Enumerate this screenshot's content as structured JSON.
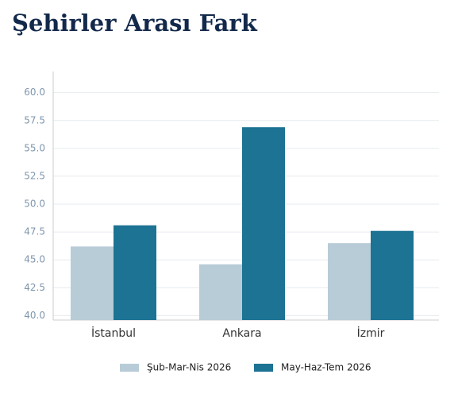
{
  "chart_data": {
    "type": "bar",
    "title": "Şehirler Arası Fark",
    "categories": [
      "İstanbul",
      "Ankara",
      "İzmir"
    ],
    "series": [
      {
        "name": "Şub-Mar-Nis 2026",
        "color": "#b8ccd7",
        "values": [
          46.2,
          44.6,
          46.5
        ]
      },
      {
        "name": "May-Haz-Tem 2026",
        "color": "#1c7393",
        "values": [
          48.1,
          56.9,
          47.6
        ]
      }
    ],
    "ylim": [
      39.6,
      61.9
    ],
    "yticks": [
      {
        "value": 40,
        "label": "40.0"
      },
      {
        "value": 42.5,
        "label": "42.5"
      },
      {
        "value": 45,
        "label": "45.0"
      },
      {
        "value": 47.5,
        "label": "47.5"
      },
      {
        "value": 50,
        "label": "50.0"
      },
      {
        "value": 52.5,
        "label": "52.5"
      },
      {
        "value": 55,
        "label": "55.0"
      },
      {
        "value": 57.5,
        "label": "57.5"
      },
      {
        "value": 60,
        "label": "60.0"
      }
    ],
    "grid": true,
    "legend": "bottom"
  }
}
